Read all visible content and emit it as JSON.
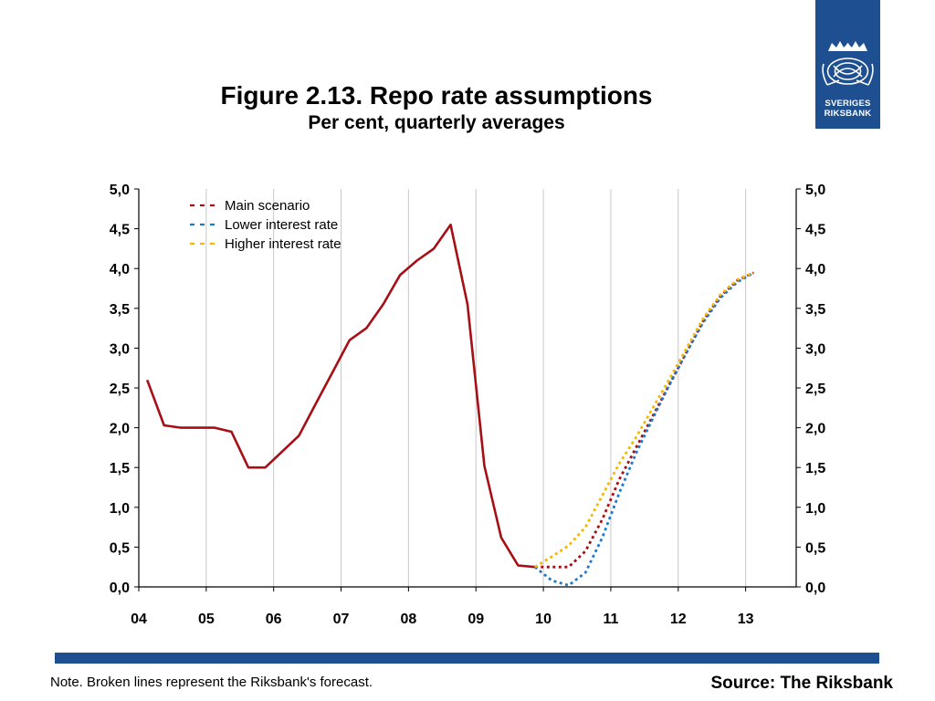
{
  "title": "Figure 2.13. Repo rate assumptions",
  "subtitle": "Per cent, quarterly averages",
  "logo": {
    "line1": "SVERIGES",
    "line2": "RIKSBANK"
  },
  "colors": {
    "main": "#a50f15",
    "lower": "#1f78c8",
    "higher": "#f5b800",
    "brand": "#1d4f91"
  },
  "footer": {
    "note": "Note. Broken lines represent the Riksbank's forecast.",
    "source": "Source: The Riksbank"
  },
  "chart_data": {
    "type": "line",
    "title": "Figure 2.13. Repo rate assumptions",
    "subtitle": "Per cent, quarterly averages",
    "x_ticks": [
      "04",
      "05",
      "06",
      "07",
      "08",
      "09",
      "10",
      "11",
      "12",
      "13"
    ],
    "x_range": [
      2004,
      2013.75
    ],
    "y_ticks": [
      "0,0",
      "0,5",
      "1,0",
      "1,5",
      "2,0",
      "2,5",
      "3,0",
      "3,5",
      "4,0",
      "4,5",
      "5,0"
    ],
    "ylim": [
      0,
      5
    ],
    "grid": "vertical",
    "legend_position": "top-left",
    "series": [
      {
        "name": "Main scenario",
        "color_key": "main",
        "style": "solid",
        "points": [
          [
            2004.125,
            2.6
          ],
          [
            2004.375,
            2.03
          ],
          [
            2004.625,
            2.0
          ],
          [
            2004.875,
            2.0
          ],
          [
            2005.125,
            2.0
          ],
          [
            2005.375,
            1.95
          ],
          [
            2005.625,
            1.5
          ],
          [
            2005.875,
            1.5
          ],
          [
            2006.125,
            1.7
          ],
          [
            2006.375,
            1.9
          ],
          [
            2006.625,
            2.3
          ],
          [
            2006.875,
            2.7
          ],
          [
            2007.125,
            3.1
          ],
          [
            2007.375,
            3.25
          ],
          [
            2007.625,
            3.55
          ],
          [
            2007.875,
            3.92
          ],
          [
            2008.125,
            4.1
          ],
          [
            2008.375,
            4.25
          ],
          [
            2008.625,
            4.55
          ],
          [
            2008.875,
            3.55
          ],
          [
            2009.125,
            1.52
          ],
          [
            2009.375,
            0.62
          ],
          [
            2009.625,
            0.27
          ],
          [
            2009.875,
            0.25
          ]
        ]
      },
      {
        "name": "Main scenario",
        "color_key": "main",
        "style": "dotted",
        "points": [
          [
            2009.875,
            0.25
          ],
          [
            2010.125,
            0.25
          ],
          [
            2010.375,
            0.25
          ],
          [
            2010.625,
            0.45
          ],
          [
            2010.875,
            0.85
          ],
          [
            2011.125,
            1.35
          ],
          [
            2011.375,
            1.75
          ],
          [
            2011.625,
            2.15
          ],
          [
            2011.875,
            2.55
          ],
          [
            2012.125,
            2.95
          ],
          [
            2012.375,
            3.35
          ],
          [
            2012.625,
            3.65
          ],
          [
            2012.875,
            3.85
          ],
          [
            2013.125,
            3.95
          ]
        ]
      },
      {
        "name": "Lower interest rate",
        "color_key": "lower",
        "style": "dotted",
        "points": [
          [
            2009.875,
            0.25
          ],
          [
            2010.125,
            0.08
          ],
          [
            2010.375,
            0.02
          ],
          [
            2010.625,
            0.18
          ],
          [
            2010.875,
            0.62
          ],
          [
            2011.125,
            1.18
          ],
          [
            2011.375,
            1.68
          ],
          [
            2011.625,
            2.12
          ],
          [
            2011.875,
            2.55
          ],
          [
            2012.125,
            2.95
          ],
          [
            2012.375,
            3.33
          ],
          [
            2012.625,
            3.63
          ],
          [
            2012.875,
            3.83
          ],
          [
            2013.125,
            3.95
          ]
        ]
      },
      {
        "name": "Higher interest rate",
        "color_key": "higher",
        "style": "dotted",
        "points": [
          [
            2009.875,
            0.25
          ],
          [
            2010.125,
            0.38
          ],
          [
            2010.375,
            0.52
          ],
          [
            2010.625,
            0.75
          ],
          [
            2010.875,
            1.15
          ],
          [
            2011.125,
            1.55
          ],
          [
            2011.375,
            1.88
          ],
          [
            2011.625,
            2.25
          ],
          [
            2011.875,
            2.62
          ],
          [
            2012.125,
            3.0
          ],
          [
            2012.375,
            3.38
          ],
          [
            2012.625,
            3.67
          ],
          [
            2012.875,
            3.86
          ],
          [
            2013.125,
            3.95
          ]
        ]
      }
    ],
    "legend": [
      {
        "name": "Main scenario",
        "color_key": "main"
      },
      {
        "name": "Lower interest rate",
        "color_key": "lower"
      },
      {
        "name": "Higher interest rate",
        "color_key": "higher"
      }
    ]
  }
}
